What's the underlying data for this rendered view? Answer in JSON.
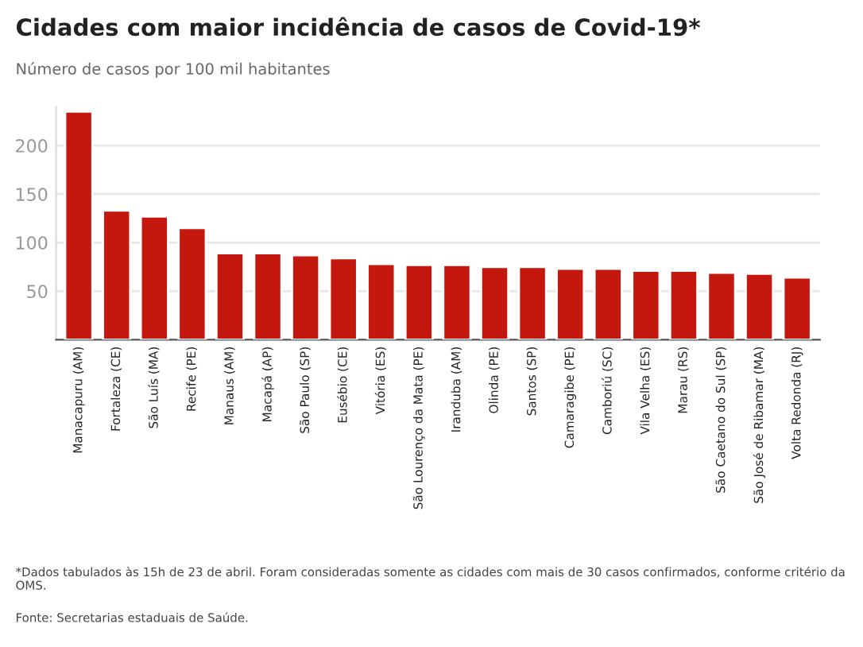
{
  "chart_data": {
    "type": "bar",
    "title": "Cidades com maior incidência de casos de Covid-19*",
    "subtitle": "Número de casos por 100 mil habitantes",
    "categories": [
      "Manacapuru (AM)",
      "Fortaleza (CE)",
      "São Luís (MA)",
      "Recife (PE)",
      "Manaus (AM)",
      "Macapá (AP)",
      "São Paulo (SP)",
      "Eusébio (CE)",
      "Vitória (ES)",
      "São Lourenço da Mata (PE)",
      "Iranduba (AM)",
      "Olinda (PE)",
      "Santos (SP)",
      "Camaragibe (PE)",
      "Camboriú (SC)",
      "Vila Velha (ES)",
      "Marau (RS)",
      "São Caetano do Sul (SP)",
      "São José de Ribamar (MA)",
      "Volta Redonda (RJ)"
    ],
    "values": [
      235,
      133,
      127,
      115,
      89,
      89,
      87,
      84,
      78,
      77,
      77,
      75,
      75,
      73,
      73,
      71,
      71,
      69,
      68,
      64
    ],
    "color": "#c4180f",
    "ylim": [
      0,
      240
    ],
    "yticks": [
      50,
      100,
      150,
      200
    ],
    "grid": "y",
    "annotations": [
      "*Dados tabulados às 15h de 23 de abril. Foram consideradas somente as cidades com mais de 30 casos confirmados, conforme critério da OMS.",
      "Fonte: Secretarias estaduais de Saúde."
    ]
  }
}
